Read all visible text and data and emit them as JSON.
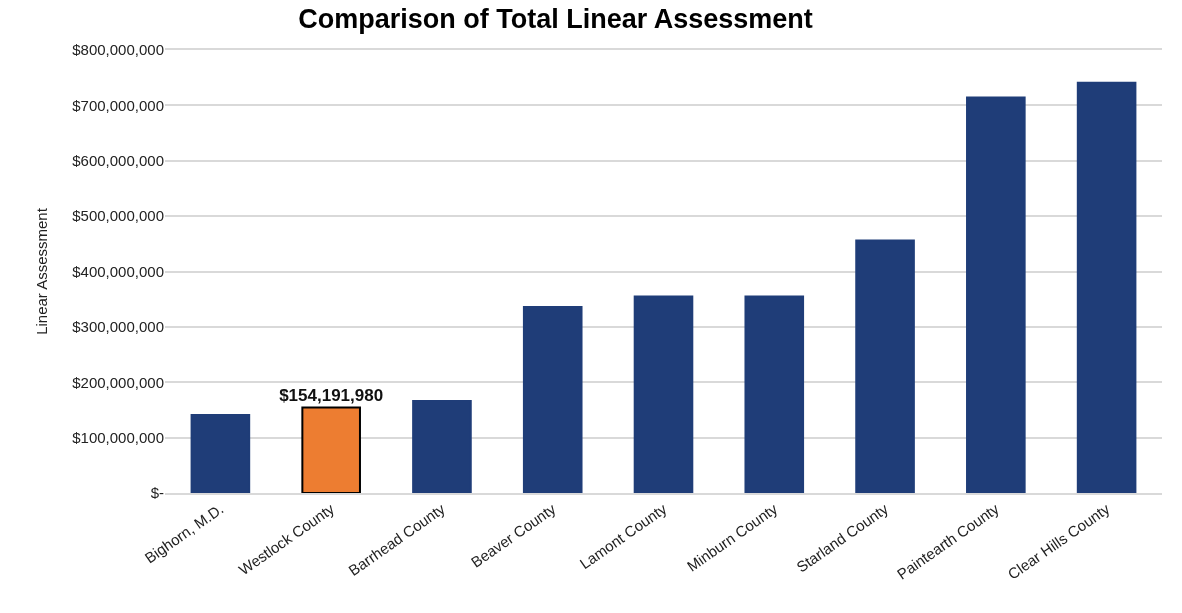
{
  "chart_data": {
    "type": "bar",
    "title": "Comparison of Total Linear Assessment",
    "ylabel": "Linear Assessment",
    "categories": [
      "Bighorn, M.D.",
      "Westlock County",
      "Barrhead County",
      "Beaver County",
      "Lamont County",
      "Minburn County",
      "Starland County",
      "Paintearth County",
      "Clear Hills County"
    ],
    "values": [
      141000000,
      154191980,
      166000000,
      336000000,
      355000000,
      355000000,
      456000000,
      714000000,
      741000000
    ],
    "colors": [
      "#1f3d78",
      "#ed7d31",
      "#1f3d78",
      "#1f3d78",
      "#1f3d78",
      "#1f3d78",
      "#1f3d78",
      "#1f3d78",
      "#1f3d78"
    ],
    "value_labels": [
      null,
      "$154,191,980",
      null,
      null,
      null,
      null,
      null,
      null,
      null
    ],
    "ylim": [
      0,
      800000000
    ],
    "yticks": [
      {
        "value": 0,
        "label": "$-"
      },
      {
        "value": 100000000,
        "label": "$100,000,000"
      },
      {
        "value": 200000000,
        "label": "$200,000,000"
      },
      {
        "value": 300000000,
        "label": "$300,000,000"
      },
      {
        "value": 400000000,
        "label": "$400,000,000"
      },
      {
        "value": 500000000,
        "label": "$500,000,000"
      },
      {
        "value": 600000000,
        "label": "$600,000,000"
      },
      {
        "value": 700000000,
        "label": "$700,000,000"
      },
      {
        "value": 800000000,
        "label": "$800,000,000"
      }
    ],
    "grid": "y"
  }
}
